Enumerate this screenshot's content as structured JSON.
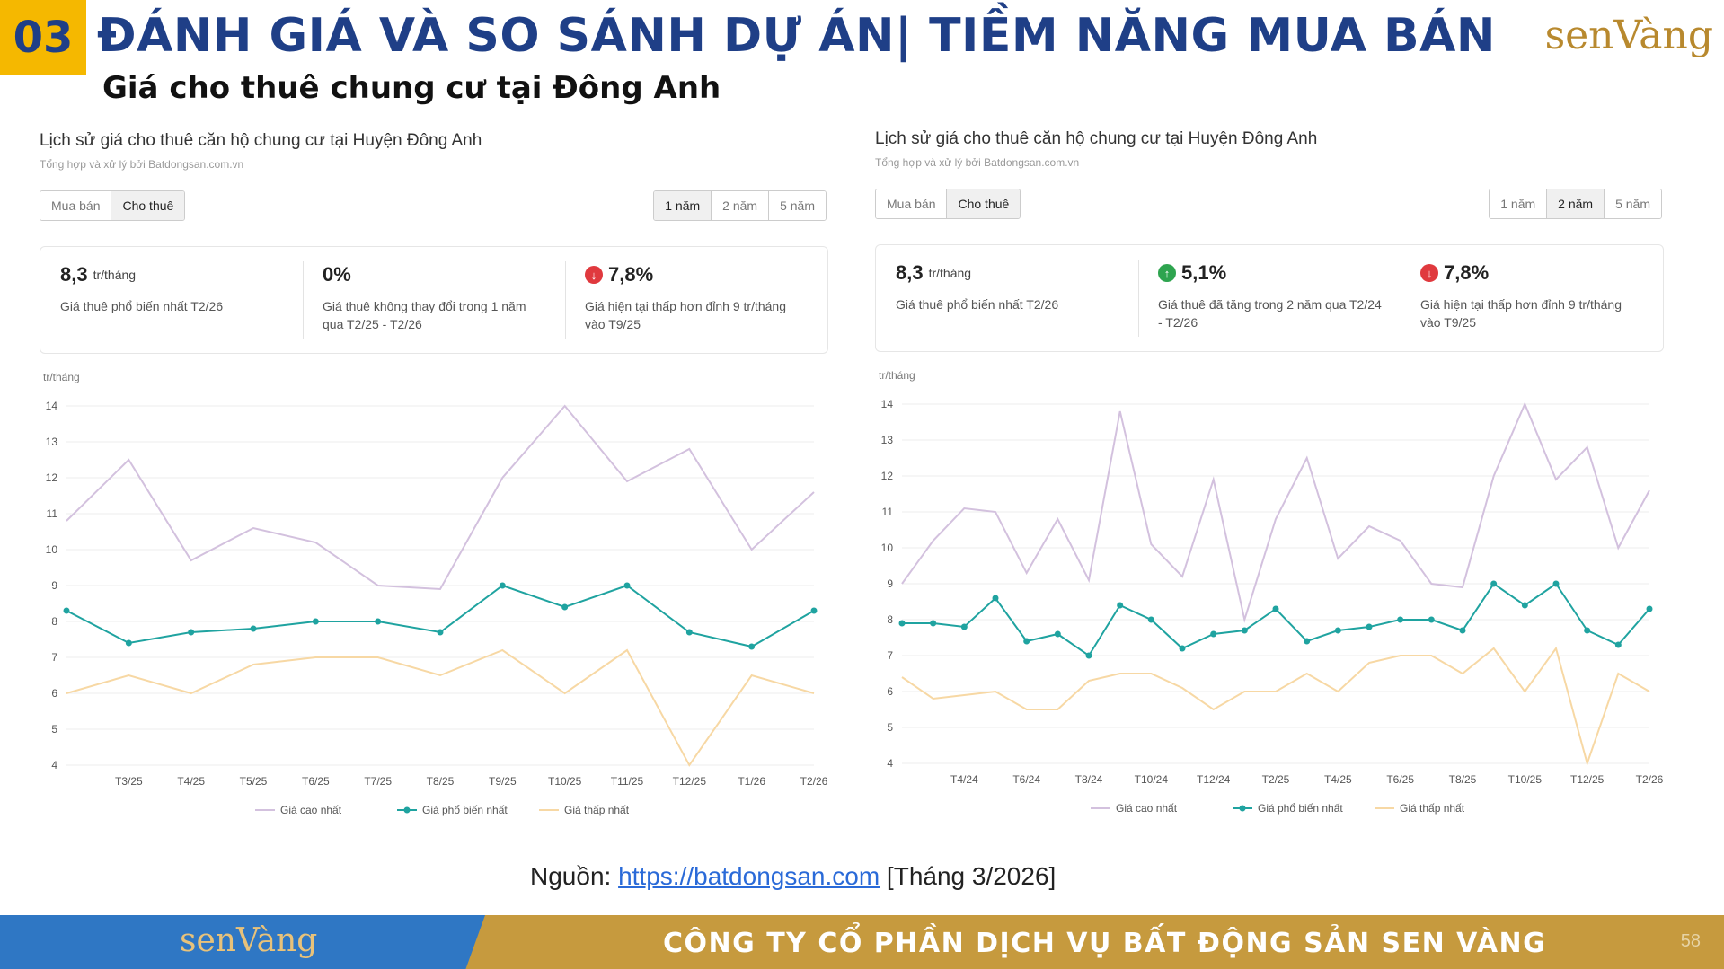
{
  "header": {
    "number": "03",
    "title": "ĐÁNH GIÁ VÀ SO SÁNH DỰ ÁN| TIỀM NĂNG MUA BÁN",
    "subtitle": "Giá cho thuê chung cư tại Đông Anh",
    "logo": "senVàng"
  },
  "panels": [
    {
      "title": "Lịch sử giá cho thuê căn hộ chung cư tại Huyện Đông Anh",
      "source": "Tổng hợp và xử lý bởi Batdongsan.com.vn",
      "tabs": [
        "Mua bán",
        "Cho thuê"
      ],
      "active_tab": "Cho thuê",
      "periods": [
        "1 năm",
        "2 năm",
        "5 năm"
      ],
      "active_period": "1 năm",
      "stats": [
        {
          "value": "8,3",
          "unit": "tr/tháng",
          "icon": "",
          "desc": "Giá thuê phổ biến nhất T2/26"
        },
        {
          "value": "0%",
          "unit": "",
          "icon": "",
          "desc": "Giá thuê không thay đổi trong 1 năm qua T2/25 - T2/26"
        },
        {
          "value": "7,8%",
          "unit": "",
          "icon": "arrow-down-icon",
          "desc": "Giá hiện tại thấp hơn đỉnh 9 tr/tháng vào T9/25"
        }
      ]
    },
    {
      "title": "Lịch sử giá cho thuê căn hộ chung cư tại Huyện Đông Anh",
      "source": "Tổng hợp và xử lý bởi Batdongsan.com.vn",
      "tabs": [
        "Mua bán",
        "Cho thuê"
      ],
      "active_tab": "Cho thuê",
      "periods": [
        "1 năm",
        "2 năm",
        "5 năm"
      ],
      "active_period": "2 năm",
      "stats": [
        {
          "value": "8,3",
          "unit": "tr/tháng",
          "icon": "",
          "desc": "Giá thuê phổ biến nhất T2/26"
        },
        {
          "value": "5,1%",
          "unit": "",
          "icon": "arrow-up-icon",
          "desc": "Giá thuê đã tăng trong 2 năm qua T2/24 - T2/26"
        },
        {
          "value": "7,8%",
          "unit": "",
          "icon": "arrow-down-icon",
          "desc": "Giá hiện tại thấp hơn đỉnh 9 tr/tháng vào T9/25"
        }
      ]
    }
  ],
  "chart_data": [
    {
      "type": "line",
      "ylabel": "tr/tháng",
      "ylim": [
        4,
        14
      ],
      "yticks": [
        4,
        5,
        6,
        7,
        8,
        9,
        10,
        11,
        12,
        13,
        14
      ],
      "x": [
        "T2/25",
        "T3/25",
        "T4/25",
        "T5/25",
        "T6/25",
        "T7/25",
        "T8/25",
        "T9/25",
        "T10/25",
        "T11/25",
        "T12/25",
        "T1/26",
        "T2/26"
      ],
      "xticks": [
        "T3/25",
        "T4/25",
        "T5/25",
        "T6/25",
        "T7/25",
        "T8/25",
        "T9/25",
        "T10/25",
        "T11/25",
        "T12/25",
        "T1/26",
        "T2/26"
      ],
      "grid": true,
      "legend": "bottom",
      "series": [
        {
          "name": "Giá cao nhất",
          "color": "#d3c1de",
          "markers": false,
          "values": [
            10.8,
            12.5,
            9.7,
            10.6,
            10.2,
            9.0,
            8.9,
            12.0,
            14.0,
            11.9,
            12.8,
            10.0,
            11.6
          ]
        },
        {
          "name": "Giá phổ biến nhất",
          "color": "#1fa3a0",
          "markers": true,
          "values": [
            8.3,
            7.4,
            7.7,
            7.8,
            8.0,
            8.0,
            7.7,
            9.0,
            8.4,
            9.0,
            7.7,
            7.3,
            8.3
          ]
        },
        {
          "name": "Giá thấp nhất",
          "color": "#f7d8a4",
          "markers": false,
          "values": [
            6.0,
            6.5,
            6.0,
            6.8,
            7.0,
            7.0,
            6.5,
            7.2,
            6.0,
            7.2,
            4.0,
            6.5,
            6.0
          ]
        }
      ]
    },
    {
      "type": "line",
      "ylabel": "tr/tháng",
      "ylim": [
        4,
        14
      ],
      "yticks": [
        4,
        5,
        6,
        7,
        8,
        9,
        10,
        11,
        12,
        13,
        14
      ],
      "x": [
        "T2/24",
        "T3/24",
        "T4/24",
        "T5/24",
        "T6/24",
        "T7/24",
        "T8/24",
        "T9/24",
        "T10/24",
        "T11/24",
        "T12/24",
        "T1/25",
        "T2/25",
        "T3/25",
        "T4/25",
        "T5/25",
        "T6/25",
        "T7/25",
        "T8/25",
        "T9/25",
        "T10/25",
        "T11/25",
        "T12/25",
        "T1/26",
        "T2/26"
      ],
      "xticks": [
        "T4/24",
        "T6/24",
        "T8/24",
        "T10/24",
        "T12/24",
        "T2/25",
        "T4/25",
        "T6/25",
        "T8/25",
        "T10/25",
        "T12/25",
        "T2/26"
      ],
      "grid": true,
      "legend": "bottom",
      "series": [
        {
          "name": "Giá cao nhất",
          "color": "#d3c1de",
          "markers": false,
          "values": [
            9.0,
            10.2,
            11.1,
            11.0,
            9.3,
            10.8,
            9.1,
            13.8,
            10.1,
            9.2,
            11.9,
            8.0,
            10.8,
            12.5,
            9.7,
            10.6,
            10.2,
            9.0,
            8.9,
            12.0,
            14.0,
            11.9,
            12.8,
            10.0,
            11.6
          ]
        },
        {
          "name": "Giá phổ biến nhất",
          "color": "#1fa3a0",
          "markers": true,
          "values": [
            7.9,
            7.9,
            7.8,
            8.6,
            7.4,
            7.6,
            7.0,
            8.4,
            8.0,
            7.2,
            7.6,
            7.7,
            8.3,
            7.4,
            7.7,
            7.8,
            8.0,
            8.0,
            7.7,
            9.0,
            8.4,
            9.0,
            7.7,
            7.3,
            8.3
          ]
        },
        {
          "name": "Giá thấp nhất",
          "color": "#f7d8a4",
          "markers": false,
          "values": [
            6.4,
            5.8,
            5.9,
            6.0,
            5.5,
            5.5,
            6.3,
            6.5,
            6.5,
            6.1,
            5.5,
            6.0,
            6.0,
            6.5,
            6.0,
            6.8,
            7.0,
            7.0,
            6.5,
            7.2,
            6.0,
            7.2,
            4.0,
            6.5,
            6.0
          ]
        }
      ]
    }
  ],
  "source_line": {
    "prefix": "Nguồn: ",
    "link": "https://batdongsan.com",
    "suffix": " [Tháng 3/2026]"
  },
  "footer": {
    "logo": "senVàng",
    "company": "CÔNG TY CỔ PHẦN DỊCH VỤ BẤT ĐỘNG SẢN SEN VÀNG",
    "page": "58"
  }
}
